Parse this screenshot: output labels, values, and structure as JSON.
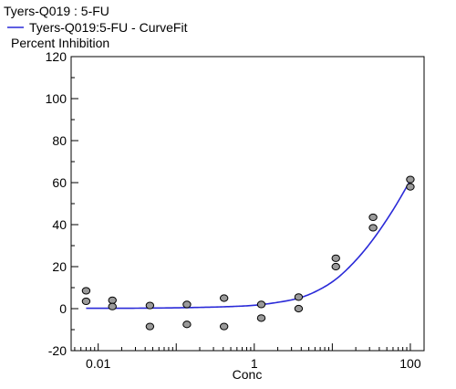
{
  "chart_data": {
    "type": "scatter",
    "title": "Tyers-Q019  : 5-FU",
    "legend": {
      "label": "Tyers-Q019:5-FU - CurveFit",
      "color": "#2a2ad8",
      "position": "top-left"
    },
    "ylabel": "Percent Inhibition",
    "xlabel": "Conc",
    "x_scale": "log",
    "xlim": [
      0.0045,
      150
    ],
    "ylim": [
      -20,
      120
    ],
    "y_ticks": [
      -20,
      0,
      20,
      40,
      60,
      80,
      100,
      120
    ],
    "y_tick_labels": [
      "-20",
      "0",
      "20",
      "40",
      "60",
      "80",
      "100",
      "120"
    ],
    "x_ticks": [
      0.01,
      1,
      100
    ],
    "x_tick_labels": [
      "0.01",
      "1",
      "100"
    ],
    "grid": false,
    "series": [
      {
        "kind": "points",
        "color": "#9a9a9a",
        "points": [
          {
            "x": 0.007,
            "y": 8.5
          },
          {
            "x": 0.007,
            "y": 3.5
          },
          {
            "x": 0.0152,
            "y": 4
          },
          {
            "x": 0.0152,
            "y": 1
          },
          {
            "x": 0.046,
            "y": 1.5
          },
          {
            "x": 0.046,
            "y": -8.5
          },
          {
            "x": 0.137,
            "y": 2
          },
          {
            "x": 0.137,
            "y": -7.5
          },
          {
            "x": 0.41,
            "y": 5
          },
          {
            "x": 0.41,
            "y": -8.5
          },
          {
            "x": 1.23,
            "y": 2
          },
          {
            "x": 1.23,
            "y": -4.5
          },
          {
            "x": 3.7,
            "y": 5.5
          },
          {
            "x": 3.7,
            "y": 0
          },
          {
            "x": 11.1,
            "y": 24
          },
          {
            "x": 11.1,
            "y": 20
          },
          {
            "x": 33.3,
            "y": 43.5
          },
          {
            "x": 33.3,
            "y": 38.5
          },
          {
            "x": 100,
            "y": 61.5
          },
          {
            "x": 100,
            "y": 58
          }
        ]
      },
      {
        "kind": "curve",
        "color": "#2a2ad8",
        "points": [
          {
            "x": 0.007,
            "y": 0.2
          },
          {
            "x": 0.02,
            "y": 0.2
          },
          {
            "x": 0.06,
            "y": 0.3
          },
          {
            "x": 0.2,
            "y": 0.6
          },
          {
            "x": 0.5,
            "y": 1.0
          },
          {
            "x": 1,
            "y": 1.6
          },
          {
            "x": 2,
            "y": 3
          },
          {
            "x": 3.7,
            "y": 5
          },
          {
            "x": 6,
            "y": 8
          },
          {
            "x": 11.1,
            "y": 14
          },
          {
            "x": 20,
            "y": 23
          },
          {
            "x": 33.3,
            "y": 33
          },
          {
            "x": 60,
            "y": 47
          },
          {
            "x": 100,
            "y": 61
          }
        ]
      }
    ]
  }
}
